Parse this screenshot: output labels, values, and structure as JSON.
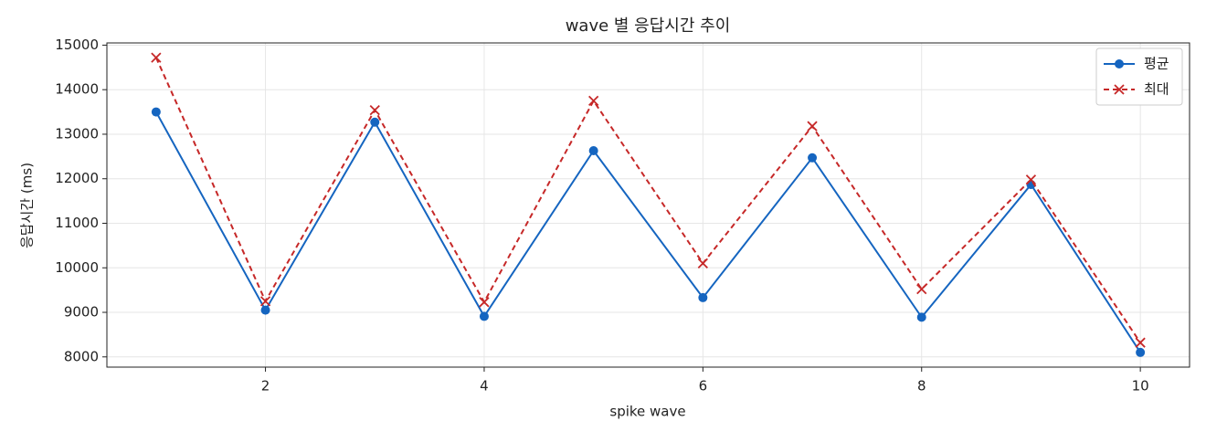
{
  "chart_data": {
    "type": "line",
    "title": "wave 별 응답시간 추이",
    "x_label": "spike wave",
    "y_label": "응답시간 (ms)",
    "x": [
      1,
      2,
      3,
      4,
      5,
      6,
      7,
      8,
      9,
      10
    ],
    "series": [
      {
        "name": "평균",
        "color": "#1565c0",
        "marker": "circle",
        "dash": "solid",
        "values": [
          13500,
          9050,
          13270,
          8910,
          12630,
          9330,
          12470,
          8890,
          11870,
          8100
        ]
      },
      {
        "name": "최대",
        "color": "#c62828",
        "marker": "x",
        "dash": "dashed",
        "values": [
          14720,
          9250,
          13540,
          9230,
          13750,
          10100,
          13180,
          9520,
          11980,
          8320
        ]
      }
    ],
    "xlim": [
      0.55,
      10.45
    ],
    "xticks": [
      2,
      4,
      6,
      8,
      10
    ],
    "ylim": [
      7770,
      15050
    ],
    "yticks": [
      8000,
      9000,
      10000,
      11000,
      12000,
      13000,
      14000,
      15000
    ],
    "grid": true,
    "legend": "upper right"
  }
}
